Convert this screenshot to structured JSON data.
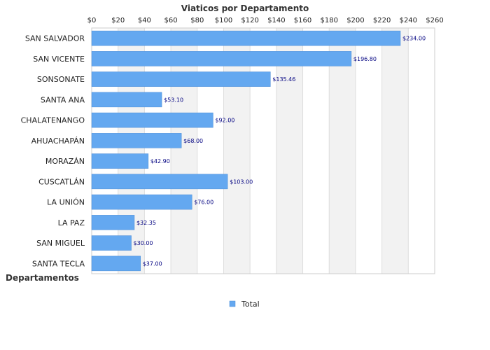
{
  "chart_data": {
    "type": "bar",
    "orientation": "horizontal",
    "title": "Viaticos por Departamento",
    "ylabel": "Departamentos",
    "xlabel": "",
    "categories": [
      "SAN SALVADOR",
      "SAN VICENTE",
      "SONSONATE",
      "SANTA ANA",
      "CHALATENANGO",
      "AHUACHAPÁN",
      "MORAZÁN",
      "CUSCATLÁN",
      "LA UNIÓN",
      "LA PAZ",
      "SAN MIGUEL",
      "SANTA TECLA"
    ],
    "series": [
      {
        "name": "Total",
        "values": [
          234.0,
          196.8,
          135.46,
          53.1,
          92.0,
          68.0,
          42.9,
          103.0,
          76.0,
          32.35,
          30.0,
          37.0
        ]
      }
    ],
    "data_labels": [
      "$234.00",
      "$196.80",
      "$135.46",
      "$53.10",
      "$92.00",
      "$68.00",
      "$42.90",
      "$103.00",
      "$76.00",
      "$32.35",
      "$30.00",
      "$37.00"
    ],
    "xlim": [
      0,
      260
    ],
    "xticks": [
      0,
      20,
      40,
      60,
      80,
      100,
      120,
      140,
      160,
      180,
      200,
      220,
      240,
      260
    ],
    "xtick_labels": [
      "$0",
      "$20",
      "$40",
      "$60",
      "$80",
      "$100",
      "$120",
      "$140",
      "$160",
      "$180",
      "$200",
      "$220",
      "$240",
      "$260"
    ],
    "x_axis_position": "top",
    "grid": true,
    "alternating_bands": true,
    "legend_position": "bottom-center",
    "colors": {
      "bar": "#64A8F0",
      "bar_stroke": "#4A8BD6",
      "band": "#F2F2F2",
      "grid": "#DDDDDD",
      "label": "#000080"
    }
  }
}
